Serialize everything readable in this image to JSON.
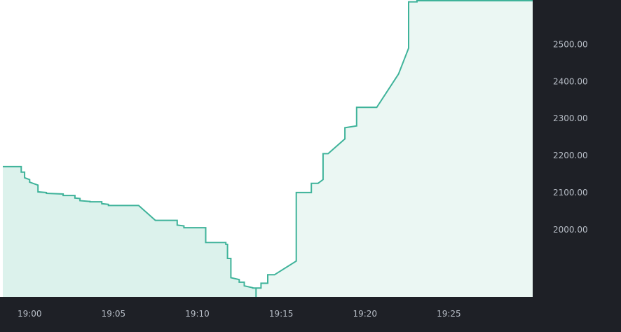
{
  "colors": {
    "line": "#3fb39a",
    "fill_left": "#dcf2ec",
    "fill_right": "#ebf7f3",
    "axis_background": "#1e2026",
    "tick_text": "#b7bdc6",
    "plot_background": "#ffffff"
  },
  "chart_data": {
    "type": "line",
    "style": "step-area",
    "title": "",
    "xlabel": "",
    "ylabel": "",
    "y_axis_position": "right",
    "x_tick_labels": [
      "19:00",
      "19:05",
      "19:10",
      "19:15",
      "19:20",
      "19:25"
    ],
    "y_tick_labels": [
      "2000.00",
      "2100.00",
      "2200.00",
      "2300.00",
      "2400.00",
      "2500.00"
    ],
    "xlim": [
      "18:58.4",
      "19:30.0"
    ],
    "ylim": [
      1818,
      2620
    ],
    "grid": false,
    "legend": "none",
    "series": [
      {
        "points": [
          [
            "18:58.4",
            2170
          ],
          [
            "18:59.5",
            2170
          ],
          [
            "18:59.5",
            2155
          ],
          [
            "18:59.7",
            2155
          ],
          [
            "18:59.7",
            2140
          ],
          [
            "19:00.0",
            2135
          ],
          [
            "19:00.0",
            2128
          ],
          [
            "19:00.5",
            2120
          ],
          [
            "19:00.5",
            2102
          ],
          [
            "19:01.0",
            2100
          ],
          [
            "19:01.0",
            2098
          ],
          [
            "19:02.0",
            2096
          ],
          [
            "19:02.0",
            2092
          ],
          [
            "19:02.7",
            2092
          ],
          [
            "19:02.7",
            2085
          ],
          [
            "19:03.0",
            2084
          ],
          [
            "19:03.0",
            2078
          ],
          [
            "19:03.6",
            2076
          ],
          [
            "19:03.6",
            2075
          ],
          [
            "19:04.3",
            2075
          ],
          [
            "19:04.3",
            2070
          ],
          [
            "19:04.7",
            2068
          ],
          [
            "19:04.7",
            2065
          ],
          [
            "19:06.5",
            2065
          ],
          [
            "19:07.5",
            2025
          ],
          [
            "19:08.8",
            2025
          ],
          [
            "19:08.8",
            2012
          ],
          [
            "19:09.2",
            2010
          ],
          [
            "19:09.2",
            2005
          ],
          [
            "19:10.5",
            2005
          ],
          [
            "19:10.5",
            1965
          ],
          [
            "19:11.7",
            1965
          ],
          [
            "19:11.7",
            1960
          ],
          [
            "19:11.8",
            1960
          ],
          [
            "19:11.8",
            1922
          ],
          [
            "19:12.0",
            1922
          ],
          [
            "19:12.0",
            1870
          ],
          [
            "19:12.5",
            1865
          ],
          [
            "19:12.5",
            1858
          ],
          [
            "19:12.8",
            1858
          ],
          [
            "19:12.8",
            1848
          ],
          [
            "19:13.3",
            1843
          ],
          [
            "19:13.3",
            1842
          ],
          [
            "19:13.5",
            1842
          ],
          [
            "19:13.5",
            1818
          ],
          [
            "19:13.5",
            1842
          ],
          [
            "19:13.8",
            1842
          ],
          [
            "19:13.8",
            1855
          ],
          [
            "19:14.2",
            1855
          ],
          [
            "19:14.2",
            1878
          ],
          [
            "19:14.6",
            1878
          ],
          [
            "19:15.9",
            1915
          ],
          [
            "19:15.9",
            2100
          ],
          [
            "19:16.8",
            2100
          ],
          [
            "19:16.8",
            2125
          ],
          [
            "19:17.2",
            2125
          ],
          [
            "19:17.5",
            2135
          ],
          [
            "19:17.5",
            2205
          ],
          [
            "19:17.8",
            2205
          ],
          [
            "19:18.8",
            2245
          ],
          [
            "19:18.8",
            2275
          ],
          [
            "19:19.5",
            2280
          ],
          [
            "19:19.5",
            2330
          ],
          [
            "19:20.7",
            2330
          ],
          [
            "19:22.0",
            2420
          ],
          [
            "19:22.6",
            2490
          ],
          [
            "19:22.6",
            2615
          ],
          [
            "19:23.1",
            2615
          ],
          [
            "19:23.1",
            2625
          ],
          [
            "19:23.5",
            2625
          ],
          [
            "19:23.5",
            2645
          ],
          [
            "19:30.0",
            2645
          ]
        ],
        "dip_fill_split": "19:13.5"
      }
    ]
  }
}
